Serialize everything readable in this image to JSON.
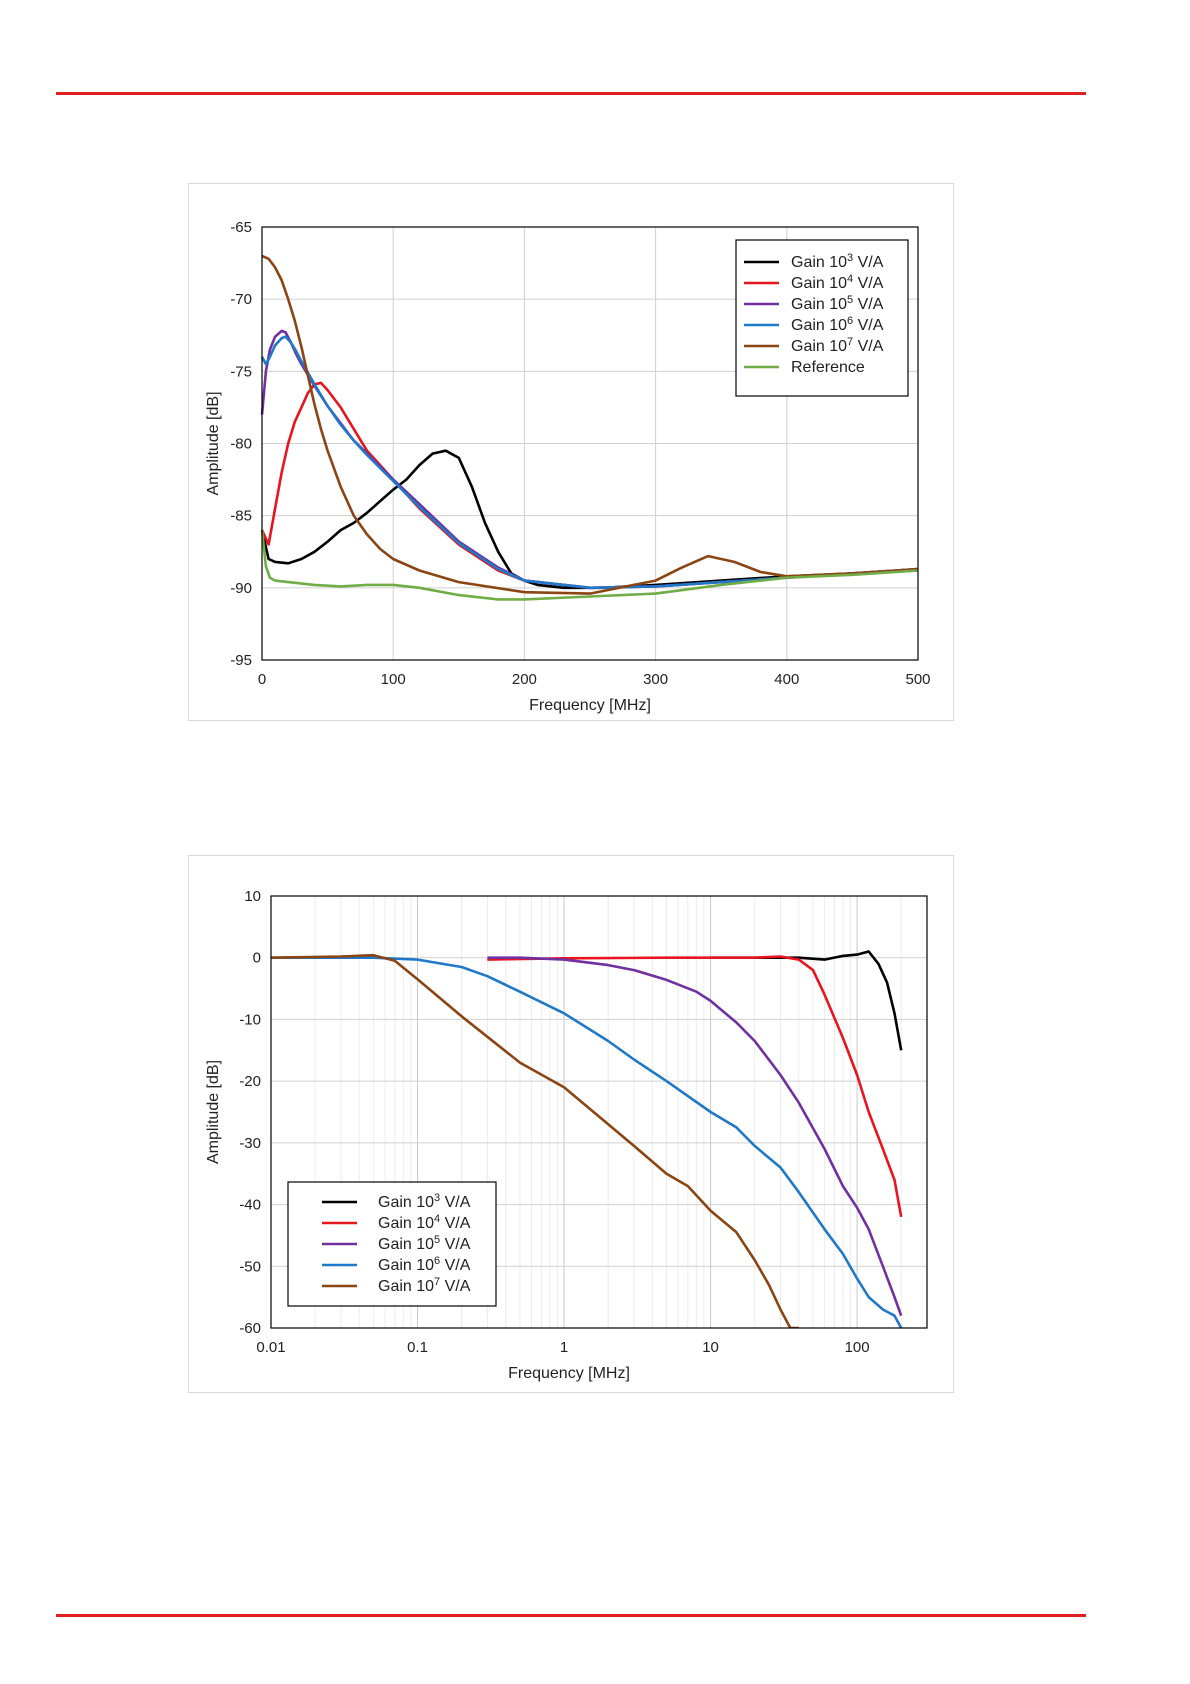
{
  "header": {
    "rule_color": "#e02020"
  },
  "footer": {
    "rule_color": "#e02020"
  },
  "chart_data": [
    {
      "type": "line",
      "xlabel": "Frequency [MHz]",
      "ylabel": "Amplitude [dB]",
      "xlim": [
        0,
        500
      ],
      "ylim": [
        -95,
        -65
      ],
      "x_ticks": [
        0,
        100,
        200,
        300,
        400,
        500
      ],
      "y_ticks": [
        -65,
        -70,
        -75,
        -80,
        -85,
        -90,
        -95
      ],
      "grid": true,
      "legend_position": "top-right",
      "series": [
        {
          "name": "Gain 10",
          "sup": "3",
          "unit": "V/A",
          "color": "#000000",
          "x": [
            0,
            5,
            10,
            20,
            30,
            40,
            50,
            60,
            70,
            80,
            90,
            100,
            110,
            120,
            130,
            140,
            150,
            160,
            170,
            180,
            190,
            200,
            210,
            230,
            260,
            300,
            350,
            400,
            450,
            500
          ],
          "y": [
            -86,
            -88,
            -88.2,
            -88.3,
            -88,
            -87.5,
            -86.8,
            -86,
            -85.5,
            -84.8,
            -84,
            -83.2,
            -82.5,
            -81.5,
            -80.7,
            -80.5,
            -81,
            -83,
            -85.5,
            -87.5,
            -89,
            -89.5,
            -89.8,
            -90,
            -90,
            -89.8,
            -89.5,
            -89.2,
            -89,
            -88.8
          ]
        },
        {
          "name": "Gain 10",
          "sup": "4",
          "unit": "V/A",
          "color": "#e8141e",
          "x": [
            0,
            5,
            10,
            15,
            20,
            25,
            30,
            35,
            40,
            45,
            50,
            60,
            70,
            80,
            100,
            120,
            150,
            180,
            200,
            250,
            300,
            400,
            500
          ],
          "y": [
            -86,
            -87,
            -84.5,
            -82,
            -80,
            -78.5,
            -77.5,
            -76.5,
            -75.9,
            -75.8,
            -76.3,
            -77.5,
            -79,
            -80.5,
            -82.5,
            -84.5,
            -87,
            -88.8,
            -89.5,
            -90,
            -89.9,
            -89.3,
            -88.7
          ]
        },
        {
          "name": "Gain 10",
          "sup": "5",
          "unit": "V/A",
          "color": "#7030a0",
          "x": [
            0,
            3,
            6,
            10,
            15,
            18,
            22,
            26,
            30,
            40,
            50,
            60,
            70,
            80,
            90,
            100,
            120,
            150,
            180,
            200,
            250,
            300,
            400,
            500
          ],
          "y": [
            -78,
            -75,
            -73.5,
            -72.6,
            -72.2,
            -72.3,
            -73,
            -73.8,
            -74.5,
            -76,
            -77.4,
            -78.6,
            -79.8,
            -80.7,
            -81.6,
            -82.5,
            -84.2,
            -86.8,
            -88.6,
            -89.5,
            -90,
            -89.9,
            -89.3,
            -88.7
          ]
        },
        {
          "name": "Gain 10",
          "sup": "6",
          "unit": "V/A",
          "color": "#1f78c8",
          "x": [
            0,
            3,
            6,
            10,
            15,
            18,
            22,
            26,
            30,
            40,
            50,
            60,
            70,
            80,
            90,
            100,
            120,
            150,
            180,
            200,
            250,
            300,
            400,
            500
          ],
          "y": [
            -74,
            -74.5,
            -74,
            -73.2,
            -72.7,
            -72.6,
            -73,
            -73.6,
            -74.3,
            -75.9,
            -77.4,
            -78.7,
            -79.8,
            -80.8,
            -81.7,
            -82.6,
            -84.4,
            -86.9,
            -88.7,
            -89.5,
            -90,
            -89.9,
            -89.3,
            -88.7
          ]
        },
        {
          "name": "Gain 10",
          "sup": "7",
          "unit": "V/A",
          "color": "#8b4513",
          "x": [
            0,
            5,
            10,
            15,
            20,
            25,
            30,
            35,
            40,
            45,
            50,
            60,
            70,
            80,
            90,
            100,
            120,
            150,
            200,
            250,
            300,
            320,
            340,
            360,
            380,
            400,
            450,
            500
          ],
          "y": [
            -67,
            -67.2,
            -67.8,
            -68.7,
            -70,
            -71.5,
            -73.3,
            -75.3,
            -77.3,
            -79,
            -80.5,
            -83,
            -85,
            -86.3,
            -87.3,
            -88,
            -88.8,
            -89.6,
            -90.3,
            -90.4,
            -89.5,
            -88.6,
            -87.8,
            -88.2,
            -88.9,
            -89.2,
            -89,
            -88.7
          ]
        },
        {
          "name": "Reference",
          "sup": "",
          "unit": "",
          "color": "#70ad47",
          "x": [
            0,
            3,
            6,
            10,
            20,
            40,
            60,
            80,
            100,
            120,
            150,
            180,
            200,
            250,
            300,
            350,
            400,
            450,
            500
          ],
          "y": [
            -86,
            -88.5,
            -89.3,
            -89.5,
            -89.6,
            -89.8,
            -89.9,
            -89.8,
            -89.8,
            -90,
            -90.5,
            -90.8,
            -90.8,
            -90.6,
            -90.4,
            -89.8,
            -89.3,
            -89.1,
            -88.8
          ]
        }
      ]
    },
    {
      "type": "line",
      "xlabel": "Frequency [MHz]",
      "ylabel": "Amplitude [dB]",
      "x_scale": "log",
      "xlim": [
        0.01,
        300
      ],
      "ylim": [
        -60,
        10
      ],
      "x_ticks": [
        0.01,
        0.1,
        1,
        10,
        100
      ],
      "x_tick_labels": [
        "0.01",
        "0.1",
        "1",
        "10",
        "100"
      ],
      "y_ticks": [
        10,
        0,
        -10,
        -20,
        -30,
        -40,
        -50,
        -60
      ],
      "grid": true,
      "legend_position": "bottom-left",
      "series": [
        {
          "name": "Gain 10",
          "sup": "3",
          "unit": "V/A",
          "color": "#000000",
          "x": [
            10,
            20,
            40,
            60,
            80,
            100,
            120,
            140,
            160,
            180,
            200
          ],
          "y": [
            0,
            0,
            0,
            -0.3,
            0.3,
            0.5,
            1,
            -1,
            -4,
            -9,
            -15
          ]
        },
        {
          "name": "Gain 10",
          "sup": "4",
          "unit": "V/A",
          "color": "#e8141e",
          "x": [
            0.3,
            1,
            5,
            10,
            20,
            30,
            40,
            50,
            60,
            80,
            100,
            120,
            150,
            180,
            200
          ],
          "y": [
            -0.3,
            -0.1,
            0,
            0,
            0,
            0.2,
            -0.3,
            -2,
            -6,
            -13,
            -19,
            -25,
            -31,
            -36,
            -42
          ]
        },
        {
          "name": "Gain 10",
          "sup": "5",
          "unit": "V/A",
          "color": "#7030a0",
          "x": [
            0.3,
            0.5,
            1,
            2,
            3,
            5,
            8,
            10,
            15,
            20,
            30,
            40,
            60,
            80,
            100,
            120,
            150,
            180,
            200
          ],
          "y": [
            0,
            0,
            -0.3,
            -1.2,
            -2,
            -3.6,
            -5.5,
            -7,
            -10.5,
            -13.5,
            -19,
            -23.5,
            -31,
            -37,
            -40.5,
            -44,
            -50,
            -55,
            -58
          ]
        },
        {
          "name": "Gain 10",
          "sup": "6",
          "unit": "V/A",
          "color": "#1f78c8",
          "x": [
            0.01,
            0.05,
            0.1,
            0.2,
            0.3,
            0.5,
            1,
            2,
            3,
            5,
            10,
            15,
            20,
            30,
            40,
            60,
            80,
            100,
            120,
            150,
            180,
            200
          ],
          "y": [
            0,
            0,
            -0.3,
            -1.5,
            -3,
            -5.5,
            -9,
            -13.5,
            -16.5,
            -20,
            -25,
            -27.5,
            -30.5,
            -34,
            -38,
            -44,
            -48,
            -52,
            -55,
            -57,
            -58,
            -60
          ]
        },
        {
          "name": "Gain 10",
          "sup": "7",
          "unit": "V/A",
          "color": "#8b4513",
          "x": [
            0.01,
            0.03,
            0.05,
            0.07,
            0.1,
            0.2,
            0.5,
            1,
            2,
            3,
            5,
            7,
            10,
            15,
            20,
            25,
            30,
            35,
            40
          ],
          "y": [
            0,
            0.2,
            0.4,
            -0.5,
            -3.5,
            -9.5,
            -17,
            -21,
            -27,
            -30.5,
            -35,
            -37,
            -41,
            -44.5,
            -49,
            -53,
            -57,
            -60,
            -60
          ]
        }
      ]
    }
  ]
}
